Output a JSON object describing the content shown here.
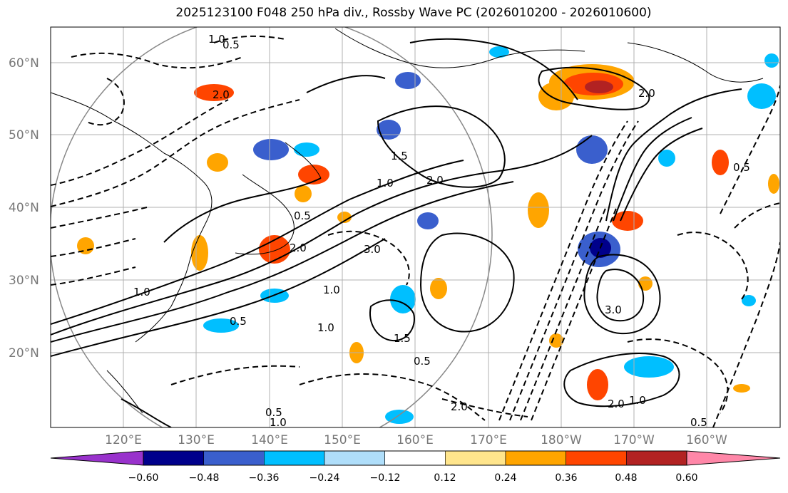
{
  "title": "2025123100 F048 250 hPa div., Rossby Wave PC (2026010200 - 2026010600)",
  "map": {
    "lat_labels": [
      "60°N",
      "50°N",
      "40°N",
      "30°N",
      "20°N"
    ],
    "lon_labels": [
      "120°E",
      "130°E",
      "140°E",
      "150°E",
      "160°E",
      "170°E",
      "180°W",
      "170°W",
      "160°W"
    ],
    "contour_labels": [
      "1.0",
      "0.5",
      "2.0",
      "1.5",
      "3.0",
      "0.5",
      "1.0",
      "2.0",
      "1.0",
      "0.5",
      "2.0",
      "1.0",
      "1.5",
      "0.5",
      "2.0",
      "3.0",
      "2.0",
      "1.0",
      "0.5",
      "1.0",
      "0.5",
      "2.0",
      "0.5",
      "1.0"
    ]
  },
  "colorbar": {
    "ticks": [
      "−0.60",
      "−0.48",
      "−0.36",
      "−0.24",
      "−0.12",
      "0.12",
      "0.24",
      "0.36",
      "0.48",
      "0.60"
    ],
    "colors": [
      "#9932cc",
      "#00008b",
      "#3a5fcd",
      "#00bfff",
      "#afdefa",
      "#ffffff",
      "#ffe58c",
      "#ffa500",
      "#ff4500",
      "#b22222",
      "#ff87a8"
    ]
  }
}
